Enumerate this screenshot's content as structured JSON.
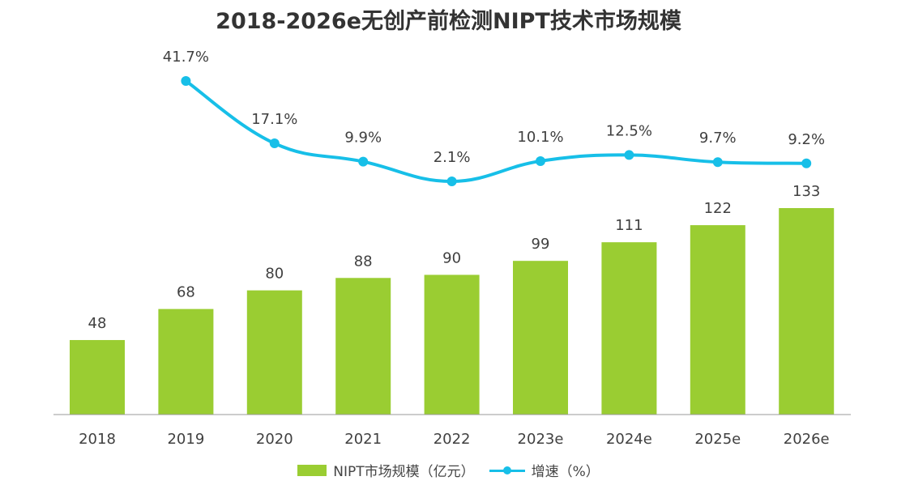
{
  "chart_data": {
    "type": "bar",
    "title": "2018-2026e无创产前检测NIPT技术市场规模",
    "categories": [
      "2018",
      "2019",
      "2020",
      "2021",
      "2022",
      "2023e",
      "2024e",
      "2025e",
      "2026e"
    ],
    "series": [
      {
        "name": "NIPT市场规模（亿元）",
        "type": "bar",
        "color": "#9ACD32",
        "values": [
          48,
          68,
          80,
          88,
          90,
          99,
          111,
          122,
          133
        ],
        "labels": [
          "48",
          "68",
          "80",
          "88",
          "90",
          "99",
          "111",
          "122",
          "133"
        ]
      },
      {
        "name": "增速（%）",
        "type": "line",
        "color": "#17BFE8",
        "values": [
          null,
          41.7,
          17.1,
          9.9,
          2.1,
          10.1,
          12.5,
          9.7,
          9.2
        ],
        "labels": [
          "",
          "41.7%",
          "17.1%",
          "9.9%",
          "2.1%",
          "10.1%",
          "12.5%",
          "9.7%",
          "9.2%"
        ]
      }
    ],
    "legend": "bottom-center",
    "grid": false
  }
}
